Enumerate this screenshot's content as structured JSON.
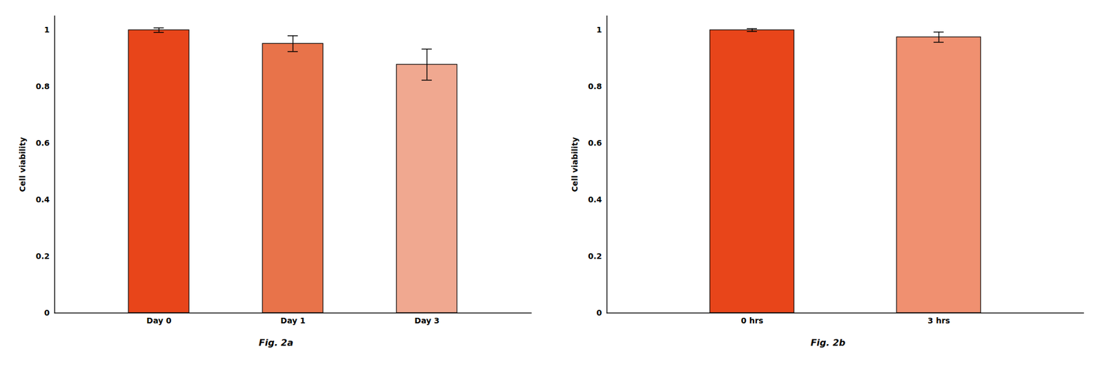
{
  "chart_data": [
    {
      "type": "bar",
      "caption": "Fig. 2a",
      "categories": [
        "Day 0",
        "Day 1",
        "Day 3"
      ],
      "values": [
        1.0,
        0.952,
        0.878
      ],
      "errors": [
        0.008,
        0.028,
        0.055
      ],
      "colors": [
        "#E8451A",
        "#E8734A",
        "#F0A890"
      ],
      "ylabel": "Cell viability",
      "ylim": [
        0,
        1.05
      ],
      "yticks": [
        0,
        0.2,
        0.4,
        0.6,
        0.8,
        1
      ],
      "grid": false
    },
    {
      "type": "bar",
      "caption": "Fig. 2b",
      "categories": [
        "0 hrs",
        "3 hrs"
      ],
      "values": [
        1.0,
        0.975
      ],
      "errors": [
        0.005,
        0.018
      ],
      "colors": [
        "#E8451A",
        "#F09070"
      ],
      "ylabel": "Cell viability",
      "ylim": [
        0,
        1.05
      ],
      "yticks": [
        0,
        0.2,
        0.4,
        0.6,
        0.8,
        1
      ],
      "grid": false
    }
  ]
}
